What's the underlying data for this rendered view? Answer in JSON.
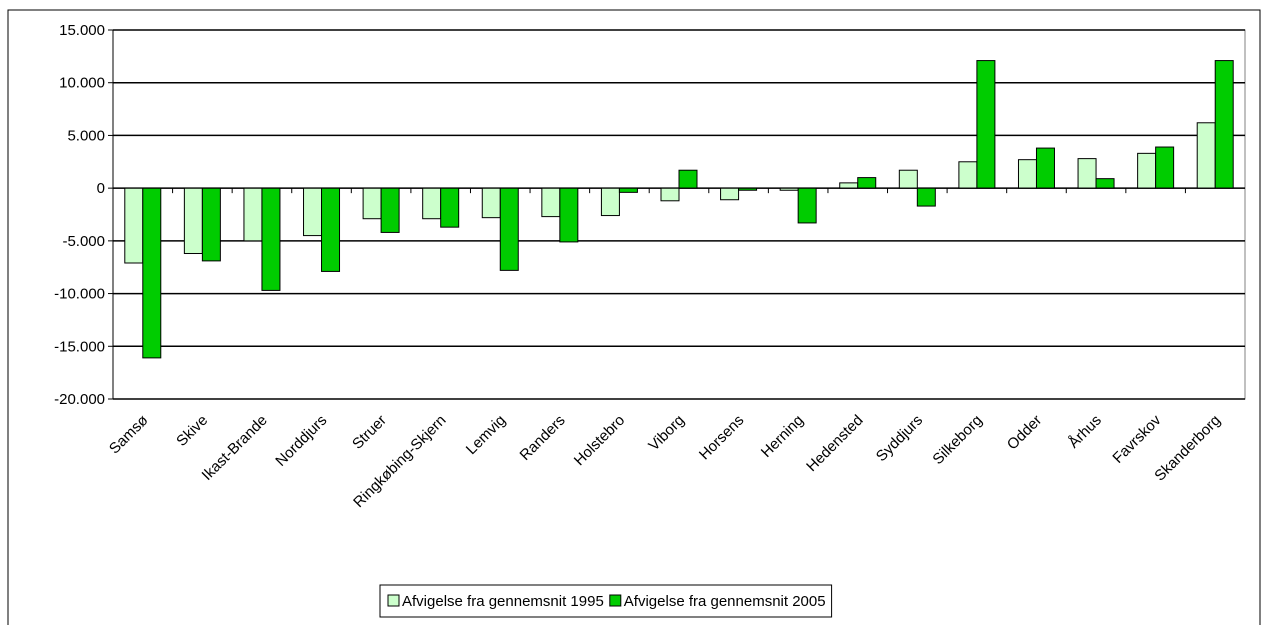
{
  "chart_data": {
    "type": "bar",
    "categories": [
      "Samsø",
      "Skive",
      "Ikast-Brande",
      "Norddjurs",
      "Struer",
      "Ringkøbing-Skjern",
      "Lemvig",
      "Randers",
      "Holstebro",
      "Viborg",
      "Horsens",
      "Herning",
      "Hedensted",
      "Syddjurs",
      "Silkeborg",
      "Odder",
      "Århus",
      "Favrskov",
      "Skanderborg"
    ],
    "series": [
      {
        "name": "Afvigelse fra gennemsnit 1995",
        "color": "#ccffcc",
        "values": [
          -7100,
          -6200,
          -5000,
          -4500,
          -2900,
          -2900,
          -2800,
          -2700,
          -2600,
          -1200,
          -1100,
          -200,
          500,
          1700,
          2500,
          2700,
          2800,
          3300,
          6200
        ]
      },
      {
        "name": "Afvigelse fra gennemsnit 2005",
        "color": "#00cc00",
        "values": [
          -16100,
          -6900,
          -9700,
          -7900,
          -4200,
          -3700,
          -7800,
          -5100,
          -400,
          1700,
          -200,
          -3300,
          1000,
          -1700,
          12100,
          3800,
          900,
          3900,
          12100
        ]
      }
    ],
    "ylim": [
      -20000,
      15000
    ],
    "yticks": [
      {
        "value": -20000,
        "label": "-20.000"
      },
      {
        "value": -15000,
        "label": "-15.000"
      },
      {
        "value": -10000,
        "label": "-10.000"
      },
      {
        "value": -5000,
        "label": "-5.000"
      },
      0,
      {
        "value": 5000,
        "label": "5.000"
      },
      {
        "value": 10000,
        "label": "10.000"
      },
      {
        "value": 15000,
        "label": "15.000"
      }
    ],
    "grid": true,
    "legend": "bottom"
  }
}
